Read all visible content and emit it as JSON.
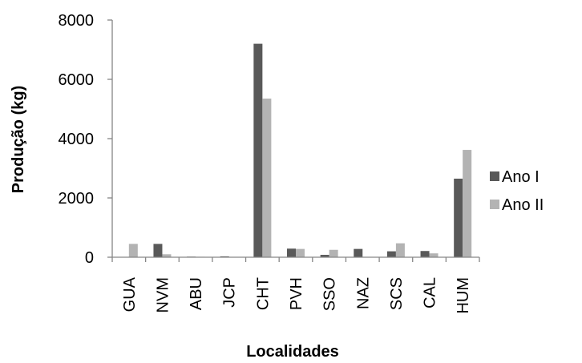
{
  "chart_data": {
    "type": "bar",
    "title": "",
    "xlabel": "Localidades",
    "ylabel": "Produção (kg)",
    "ylim": [
      0,
      8000
    ],
    "yticks": [
      0,
      2000,
      4000,
      6000,
      8000
    ],
    "ytick_labels": [
      "0",
      "2000",
      "4000",
      "6000",
      "8000"
    ],
    "grid": false,
    "legend_position": "right",
    "categories": [
      "GUA",
      "NVM",
      "ABU",
      "JCP",
      "CHT",
      "PVH",
      "SSO",
      "NAZ",
      "SCS",
      "CAL",
      "HUM"
    ],
    "series": [
      {
        "name": "Ano I",
        "color": "#595959",
        "values": [
          0,
          450,
          20,
          30,
          7200,
          290,
          80,
          280,
          200,
          210,
          2650
        ]
      },
      {
        "name": "Ano II",
        "color": "#b3b3b3",
        "values": [
          450,
          100,
          15,
          10,
          5350,
          280,
          250,
          0,
          470,
          130,
          3620
        ]
      }
    ]
  }
}
